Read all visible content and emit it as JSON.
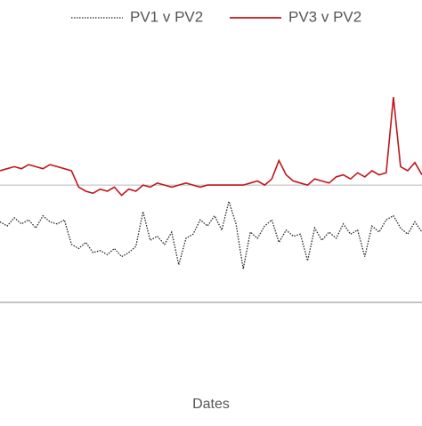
{
  "chart_data": {
    "type": "line",
    "x_label": "Dates",
    "ylim": [
      0,
      100
    ],
    "refline": 53,
    "refline_color": "#bbbbbb",
    "series": [
      {
        "name": "PV1 v PV2",
        "color": "#222222",
        "dash": "1.5 1.5",
        "values": [
          35,
          33,
          37,
          34,
          36,
          32,
          38,
          35,
          34,
          36,
          24,
          22,
          25,
          20,
          21,
          19,
          22,
          18,
          20,
          23,
          40,
          26,
          28,
          24,
          30,
          14,
          27,
          29,
          36,
          33,
          38,
          31,
          45,
          34,
          12,
          30,
          27,
          33,
          36,
          25,
          31,
          28,
          29,
          16,
          32,
          26,
          30,
          27,
          34,
          29,
          31,
          18,
          33,
          30,
          36,
          38,
          32,
          29,
          35,
          30
        ]
      },
      {
        "name": "PV3 v PV2",
        "color": "#c0161b",
        "dash": null,
        "values": [
          60,
          61,
          62,
          61,
          63,
          62,
          61,
          63,
          62,
          61,
          60,
          52,
          50,
          49,
          51,
          50,
          52,
          48,
          51,
          50,
          53,
          52,
          54,
          53,
          52,
          53,
          54,
          53,
          52,
          53,
          53,
          53,
          53,
          53,
          53,
          54,
          55,
          53,
          56,
          65,
          58,
          55,
          54,
          53,
          56,
          55,
          54,
          57,
          58,
          56,
          59,
          57,
          60,
          58,
          59,
          96,
          62,
          60,
          64,
          58
        ]
      }
    ]
  }
}
